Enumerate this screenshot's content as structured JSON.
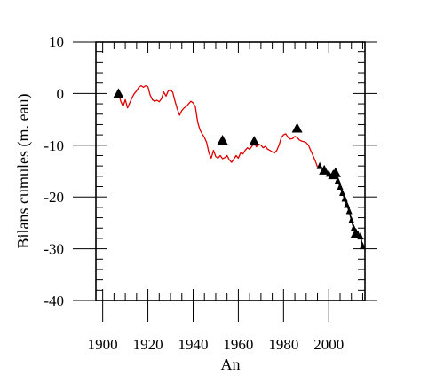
{
  "chart_data": {
    "type": "line",
    "title": "",
    "xlabel": "An",
    "ylabel": "Bilans cumules (m. eau)",
    "xlim": [
      1897,
      2016
    ],
    "ylim": [
      -40,
      10
    ],
    "x_ticks": [
      1900,
      1920,
      1940,
      1960,
      1980,
      2000
    ],
    "y_ticks": [
      10,
      0,
      -10,
      -20,
      -30,
      -40
    ],
    "grid": false,
    "legend": "none",
    "series": [
      {
        "kind": "line",
        "color": "#e00000",
        "points": [
          [
            1907,
            0
          ],
          [
            1908,
            -1.5
          ],
          [
            1909,
            -2.5
          ],
          [
            1910,
            -1.2
          ],
          [
            1911,
            -2.8
          ],
          [
            1912,
            -1.8
          ],
          [
            1913,
            -0.8
          ],
          [
            1914,
            0.0
          ],
          [
            1915,
            0.5
          ],
          [
            1916,
            1.2
          ],
          [
            1917,
            1.5
          ],
          [
            1918,
            1.2
          ],
          [
            1919,
            1.5
          ],
          [
            1920,
            1.3
          ],
          [
            1921,
            -0.3
          ],
          [
            1922,
            -1.2
          ],
          [
            1923,
            -1.5
          ],
          [
            1924,
            -1.3
          ],
          [
            1925,
            -1.6
          ],
          [
            1926,
            -1.0
          ],
          [
            1927,
            0.3
          ],
          [
            1928,
            -0.5
          ],
          [
            1929,
            0.5
          ],
          [
            1930,
            0.7
          ],
          [
            1931,
            0.2
          ],
          [
            1932,
            -1.5
          ],
          [
            1933,
            -3.0
          ],
          [
            1934,
            -4.2
          ],
          [
            1935,
            -3.3
          ],
          [
            1936,
            -2.8
          ],
          [
            1937,
            -2.5
          ],
          [
            1938,
            -2.0
          ],
          [
            1939,
            -1.5
          ],
          [
            1940,
            -1.8
          ],
          [
            1941,
            -2.6
          ],
          [
            1942,
            -5.5
          ],
          [
            1943,
            -7.0
          ],
          [
            1944,
            -7.8
          ],
          [
            1945,
            -8.5
          ],
          [
            1946,
            -9.5
          ],
          [
            1947,
            -11.5
          ],
          [
            1948,
            -12.5
          ],
          [
            1949,
            -11.0
          ],
          [
            1950,
            -12.2
          ],
          [
            1951,
            -12.5
          ],
          [
            1952,
            -12.0
          ],
          [
            1953,
            -12.6
          ],
          [
            1954,
            -12.4
          ],
          [
            1955,
            -12.0
          ],
          [
            1956,
            -12.8
          ],
          [
            1957,
            -13.3
          ],
          [
            1958,
            -12.7
          ],
          [
            1959,
            -12.0
          ],
          [
            1960,
            -12.5
          ],
          [
            1961,
            -11.5
          ],
          [
            1962,
            -11.7
          ],
          [
            1963,
            -11.0
          ],
          [
            1964,
            -10.5
          ],
          [
            1965,
            -10.8
          ],
          [
            1966,
            -10.2
          ],
          [
            1967,
            -9.5
          ],
          [
            1968,
            -10.3
          ],
          [
            1969,
            -9.8
          ],
          [
            1970,
            -10.0
          ],
          [
            1971,
            -10.5
          ],
          [
            1972,
            -10.2
          ],
          [
            1973,
            -10.8
          ],
          [
            1974,
            -11.0
          ],
          [
            1975,
            -11.3
          ],
          [
            1976,
            -11.5
          ],
          [
            1977,
            -11.0
          ],
          [
            1978,
            -10.0
          ],
          [
            1979,
            -8.5
          ],
          [
            1980,
            -8.0
          ],
          [
            1981,
            -7.8
          ],
          [
            1982,
            -8.5
          ],
          [
            1983,
            -8.8
          ],
          [
            1984,
            -8.7
          ],
          [
            1985,
            -8.3
          ],
          [
            1986,
            -8.5
          ],
          [
            1987,
            -9.0
          ],
          [
            1988,
            -9.2
          ],
          [
            1989,
            -9.3
          ],
          [
            1990,
            -9.5
          ],
          [
            1991,
            -10.0
          ],
          [
            1992,
            -11.0
          ],
          [
            1993,
            -12.0
          ],
          [
            1994,
            -13.0
          ],
          [
            1995,
            -14.2
          ]
        ]
      },
      {
        "kind": "markers",
        "color": "#000000",
        "marker": "triangle",
        "points": [
          [
            1907,
            0.0
          ],
          [
            1953,
            -9.0
          ],
          [
            1967,
            -9.2
          ],
          [
            1986,
            -6.7
          ],
          [
            1996,
            -14.0
          ],
          [
            1998,
            -14.8
          ],
          [
            2000,
            -15.5
          ],
          [
            2002,
            -15.7
          ],
          [
            2003,
            -15.3
          ],
          [
            2004,
            -16.8
          ],
          [
            2005,
            -18.0
          ],
          [
            2006,
            -19.2
          ],
          [
            2007,
            -20.3
          ],
          [
            2008,
            -21.5
          ],
          [
            2009,
            -22.7
          ],
          [
            2010,
            -24.5
          ],
          [
            2011,
            -26.0
          ],
          [
            2012,
            -27.0
          ],
          [
            2013,
            -27.3
          ],
          [
            2014,
            -27.6
          ],
          [
            2015,
            -29.5
          ]
        ],
        "size": [
          "large",
          "large",
          "large",
          "large",
          "small",
          "large",
          "small",
          "large",
          "large",
          "small",
          "small",
          "small",
          "small",
          "small",
          "small",
          "small",
          "small",
          "large",
          "small",
          "small",
          "small"
        ],
        "connected_from_index": 5
      }
    ]
  }
}
